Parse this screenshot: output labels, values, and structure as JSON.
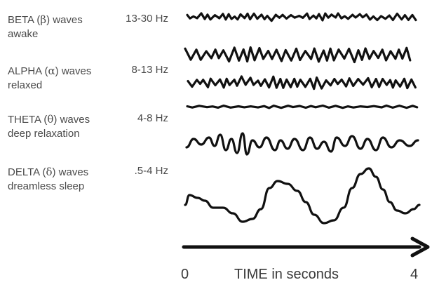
{
  "bands": [
    {
      "name_prefix": "BETA (",
      "greek": "β",
      "name_suffix": ") waves",
      "state": "awake",
      "freq": "13-30 Hz"
    },
    {
      "name_prefix": "ALPHA (",
      "greek": "α",
      "name_suffix": ") waves",
      "state": "relaxed",
      "freq": "8-13 Hz"
    },
    {
      "name_prefix": "THETA (",
      "greek": "θ",
      "name_suffix": ") waves",
      "state": "deep relaxation",
      "freq": "4-8 Hz"
    },
    {
      "name_prefix": "DELTA (",
      "greek": "δ",
      "name_suffix": ") waves",
      "state": "dreamless sleep",
      "freq": ".5-4 Hz"
    }
  ],
  "axis": {
    "start": "0",
    "label": "TIME in seconds",
    "end": "4"
  },
  "colors": {
    "wave": "#111111",
    "text": "#4a4a4a"
  }
}
